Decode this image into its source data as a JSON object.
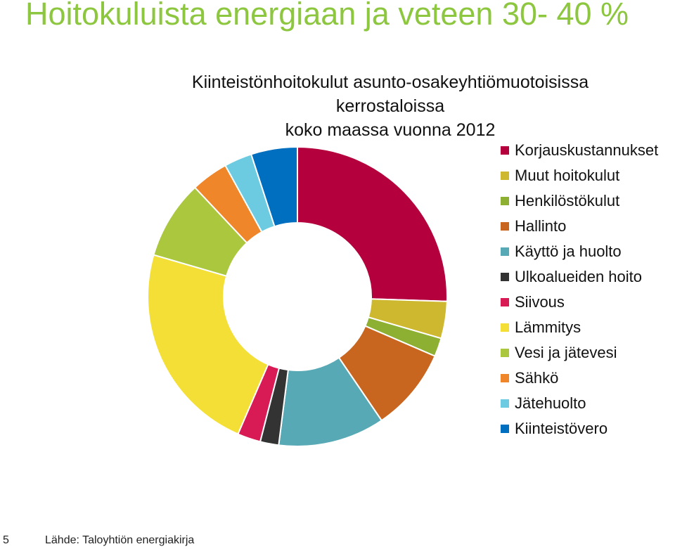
{
  "slide": {
    "title": "Hoitokuluista energiaan ja veteen 30- 40 %",
    "page_number": "5",
    "source": "Lähde: Taloyhtiön energiakirja"
  },
  "chart_data": {
    "type": "pie",
    "donut": true,
    "title_lines": [
      "Kiinteistönhoitokulut asunto-osakeyhtiömuotoisissa",
      "kerrostaloissa",
      "koko maassa vuonna 2012"
    ],
    "legend_position": "right",
    "categories": [
      "Korjauskustannukset",
      "Muut hoitokulut",
      "Henkilöstökulut",
      "Hallinto",
      "Käyttö ja huolto",
      "Ulkoalueiden hoito",
      "Siivous",
      "Lämmitys",
      "Vesi ja jätevesi",
      "Sähkö",
      "Jätehuolto",
      "Kiinteistövero"
    ],
    "values": [
      25.5,
      4.0,
      2.0,
      9.0,
      11.5,
      2.0,
      2.5,
      23.0,
      8.5,
      4.0,
      3.0,
      5.0
    ],
    "colors": [
      "#b5003e",
      "#cdb830",
      "#8db032",
      "#c8661f",
      "#58a9b6",
      "#333333",
      "#d81b55",
      "#f4df36",
      "#aac73d",
      "#ef862a",
      "#6ccbe0",
      "#006fc0"
    ]
  }
}
